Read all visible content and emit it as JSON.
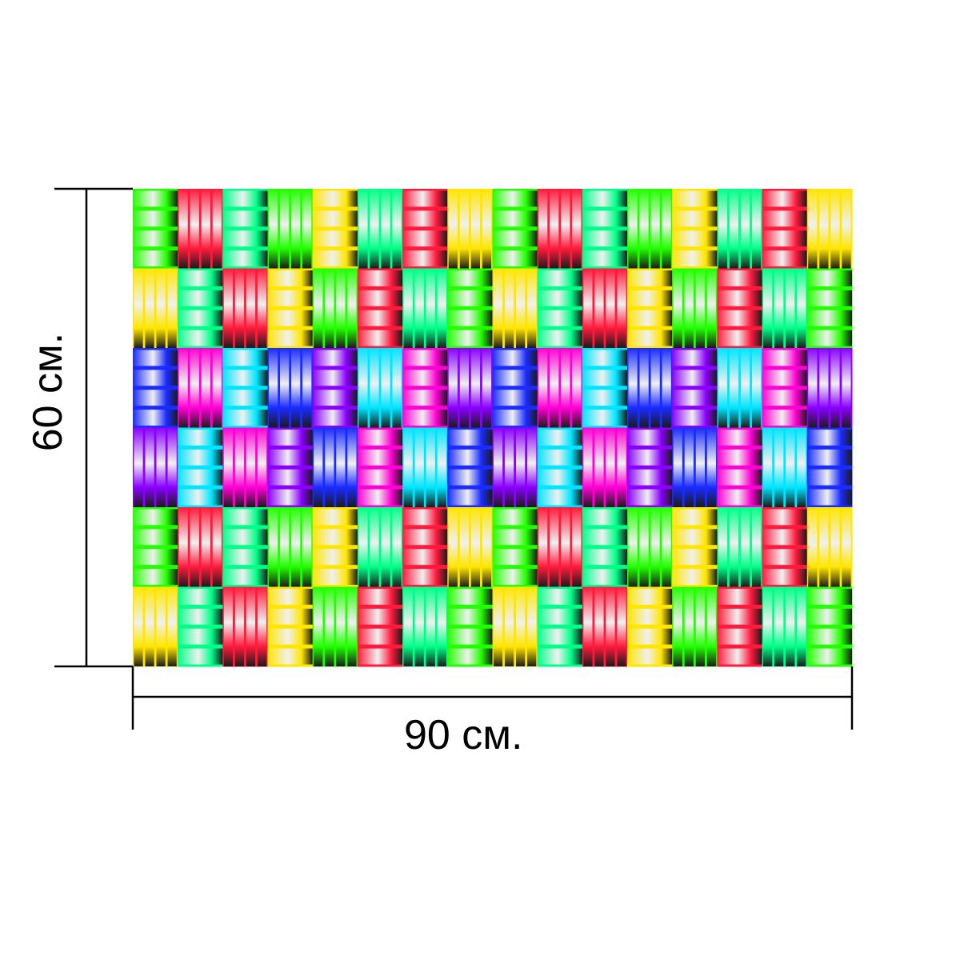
{
  "product": {
    "width_label": "90 см.",
    "height_label": "60 см.",
    "width_value": 90,
    "height_value": 60,
    "unit": "см."
  },
  "pattern": {
    "description_icon": "woven-basket-weave-gradient-pattern",
    "bands": [
      {
        "name": "green-warm",
        "colors": [
          "#22ff00",
          "#ff1a3c",
          "#ffe600",
          "#00ff88"
        ]
      },
      {
        "name": "blue-magenta",
        "colors": [
          "#1a2bff",
          "#ff00d4",
          "#8a00ff",
          "#00e5ff"
        ]
      },
      {
        "name": "green-warm-repeat",
        "colors": [
          "#22ff00",
          "#ff1a3c",
          "#ffe600",
          "#00ff88"
        ]
      }
    ]
  },
  "colors": {
    "line": "#000000",
    "background": "#ffffff"
  }
}
